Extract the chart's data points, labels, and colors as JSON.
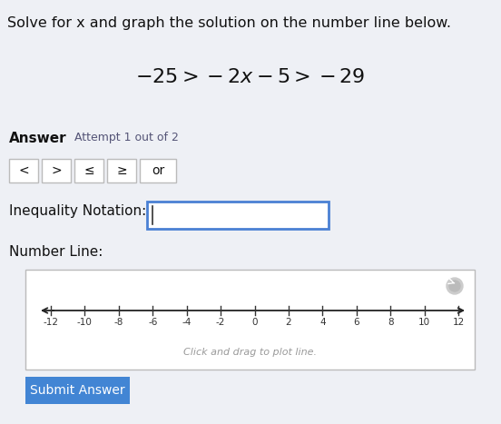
{
  "title": "Solve for x and graph the solution on the number line below.",
  "equation_parts": [
    "-25 > -2",
    "x",
    " - 5 > -29"
  ],
  "answer_label": "Answer",
  "attempt_label": "Attempt 1 out of 2",
  "buttons": [
    "<",
    ">",
    "≤",
    "≥",
    "or"
  ],
  "inequality_label": "Inequality Notation:",
  "number_line_label": "Number Line:",
  "number_line_ticks": [
    -12,
    -10,
    -8,
    -6,
    -4,
    -2,
    0,
    2,
    4,
    6,
    8,
    10,
    12
  ],
  "number_line_hint": "Click and drag to plot line.",
  "submit_button": "Submit Answer",
  "bg_color": "#eef0f5",
  "white": "#ffffff",
  "blue_btn": "#4285d4",
  "box_border": "#4a80d4",
  "text_color": "#111111",
  "gray_btn_border": "#bbbbbb",
  "attempt_color": "#555577"
}
